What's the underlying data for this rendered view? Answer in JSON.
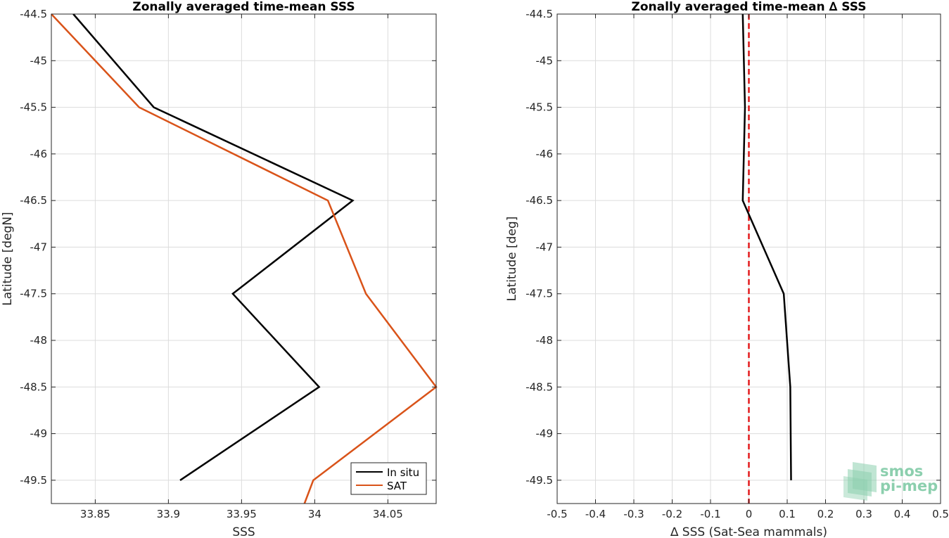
{
  "chart_data": [
    {
      "type": "line",
      "title": "Zonally averaged time-mean SSS",
      "xlabel": "SSS",
      "ylabel": "Latitude [degN]",
      "xlim": [
        33.82,
        34.083
      ],
      "ylim": [
        -49.75,
        -44.5
      ],
      "xticks": [
        33.85,
        33.9,
        33.95,
        34,
        34.05
      ],
      "xtick_labels": [
        "33.85",
        "33.9",
        "33.95",
        "34",
        "34.05"
      ],
      "yticks": [
        -44.5,
        -45,
        -45.5,
        -46,
        -46.5,
        -47,
        -47.5,
        -48,
        -48.5,
        -49,
        -49.5
      ],
      "ytick_labels": [
        "-44.5",
        "-45",
        "-45.5",
        "-46",
        "-46.5",
        "-47",
        "-47.5",
        "-48",
        "-48.5",
        "-49",
        "-49.5"
      ],
      "grid": true,
      "legend": "bottom-right",
      "series": [
        {
          "name": "In situ",
          "color": "#000000",
          "x": [
            33.835,
            33.89,
            34.026,
            33.944,
            34.003,
            33.908
          ],
          "y": [
            -44.5,
            -45.5,
            -46.5,
            -47.5,
            -48.5,
            -49.5
          ]
        },
        {
          "name": "SAT",
          "color": "#d95319",
          "x": [
            33.82,
            33.88,
            34.009,
            34.035,
            34.083,
            33.999,
            33.993
          ],
          "y": [
            -44.5,
            -45.5,
            -46.5,
            -47.5,
            -48.5,
            -49.5,
            -49.75
          ]
        }
      ]
    },
    {
      "type": "line",
      "title": "Zonally averaged time-mean ∆ SSS",
      "xlabel": "∆ SSS (Sat-Sea mammals)",
      "ylabel": "Latitude [deg]",
      "xlim": [
        -0.5,
        0.5
      ],
      "ylim": [
        -49.75,
        -44.5
      ],
      "xticks": [
        -0.5,
        -0.4,
        -0.3,
        -0.2,
        -0.1,
        0,
        0.1,
        0.2,
        0.3,
        0.4,
        0.5
      ],
      "xtick_labels": [
        "-0.5",
        "-0.4",
        "-0.3",
        "-0.2",
        "-0.1",
        "0",
        "0.1",
        "0.2",
        "0.3",
        "0.4",
        "0.5"
      ],
      "yticks": [
        -44.5,
        -45,
        -45.5,
        -46,
        -46.5,
        -47,
        -47.5,
        -48,
        -48.5,
        -49,
        -49.5
      ],
      "ytick_labels": [
        "-44.5",
        "-45",
        "-45.5",
        "-46",
        "-46.5",
        "-47",
        "-47.5",
        "-48",
        "-48.5",
        "-49",
        "-49.5"
      ],
      "grid": true,
      "zero_line_color": "#e31a1c",
      "series": [
        {
          "color": "#000000",
          "x": [
            -0.016,
            -0.01,
            -0.016,
            0.091,
            0.108,
            0.11
          ],
          "y": [
            -44.5,
            -45.5,
            -46.5,
            -47.5,
            -48.5,
            -49.5
          ]
        }
      ]
    }
  ],
  "logo": {
    "line1": "smos",
    "line2": "pi-mep",
    "color": "#8ccfae"
  }
}
